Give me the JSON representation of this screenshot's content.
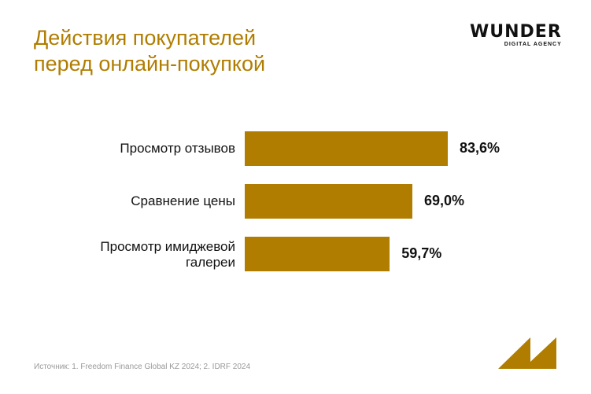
{
  "title_lines": [
    "Действия покупателей",
    "перед онлайн-покупкой"
  ],
  "logo": {
    "main": "WUNDER",
    "sub": "DIGITAL AGENCY"
  },
  "source": "Источник: 1. Freedom Finance Global KZ 2024; 2. IDRF 2024",
  "colors": {
    "accent": "#B07D00"
  },
  "chart_data": {
    "type": "bar",
    "orientation": "horizontal",
    "categories": [
      "Просмотр отзывов",
      "Сравнение цены",
      "Просмотр имиджевой галереи"
    ],
    "values": [
      83.6,
      69.0,
      59.7
    ],
    "labels": [
      "83,6%",
      "69,0%",
      "59,7%"
    ],
    "xlim": [
      0,
      100
    ],
    "grid": false
  }
}
